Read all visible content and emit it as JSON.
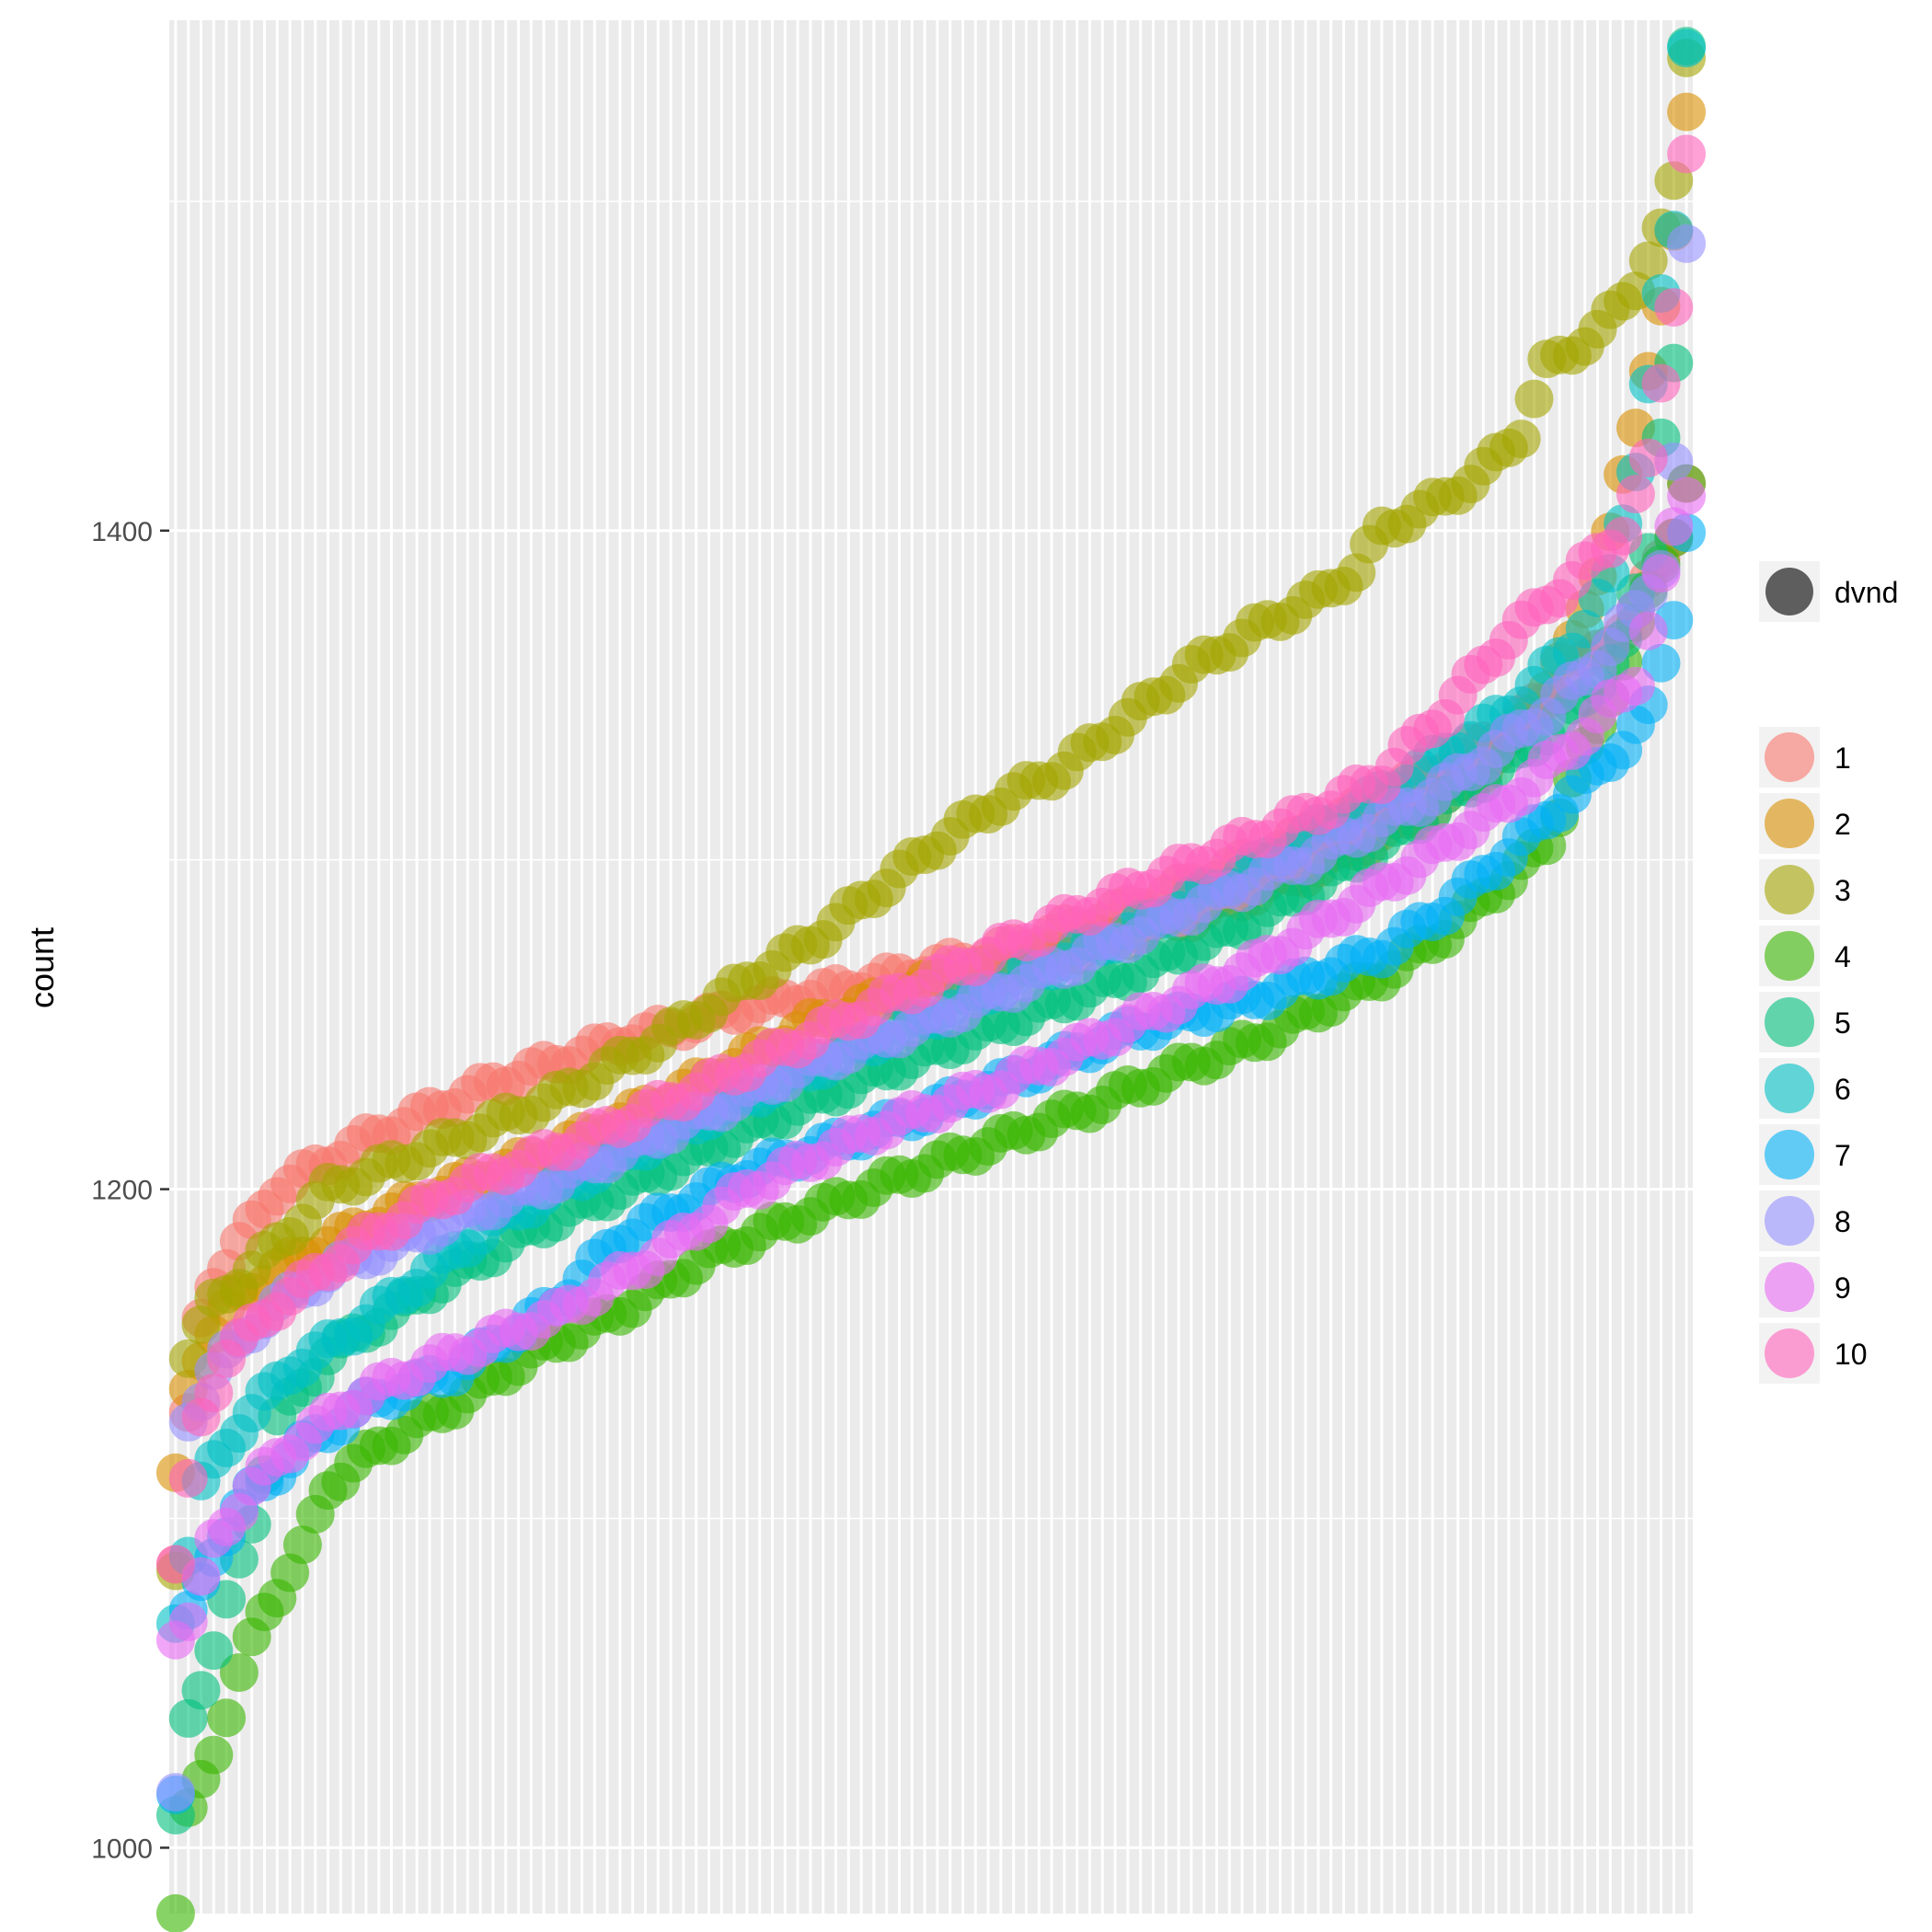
{
  "chart_data": {
    "type": "scatter",
    "title": "",
    "xlabel": "",
    "ylabel": "count",
    "x_count": 120,
    "ylim": [
      980,
      1555
    ],
    "y_ticks": [
      1000,
      1200,
      1400
    ],
    "y_minor_ticks": [
      1100,
      1300,
      1500
    ],
    "grid": true,
    "legend_position": "right",
    "size_legend": {
      "label": "dvnd"
    },
    "color_legend": {
      "entries": [
        "1",
        "2",
        "3",
        "4",
        "5",
        "6",
        "7",
        "8",
        "9",
        "10"
      ]
    },
    "series": [
      {
        "name": "1",
        "color": "#F8766D",
        "anchors": [
          [
            0,
            1086
          ],
          [
            1,
            1130
          ],
          [
            2,
            1160
          ],
          [
            3,
            1172
          ],
          [
            5,
            1183
          ],
          [
            8,
            1200
          ],
          [
            15,
            1215
          ],
          [
            25,
            1232
          ],
          [
            35,
            1245
          ],
          [
            45,
            1255
          ],
          [
            55,
            1263
          ],
          [
            65,
            1272
          ],
          [
            75,
            1285
          ],
          [
            85,
            1300
          ],
          [
            95,
            1318
          ],
          [
            105,
            1340
          ],
          [
            110,
            1355
          ],
          [
            115,
            1375
          ],
          [
            118,
            1400
          ],
          [
            119,
            1415
          ]
        ]
      },
      {
        "name": "2",
        "color": "#D89000",
        "anchors": [
          [
            0,
            1112
          ],
          [
            1,
            1140
          ],
          [
            2,
            1150
          ],
          [
            5,
            1168
          ],
          [
            10,
            1180
          ],
          [
            20,
            1198
          ],
          [
            30,
            1212
          ],
          [
            40,
            1230
          ],
          [
            50,
            1250
          ],
          [
            60,
            1263
          ],
          [
            70,
            1272
          ],
          [
            80,
            1283
          ],
          [
            90,
            1298
          ],
          [
            100,
            1318
          ],
          [
            105,
            1335
          ],
          [
            110,
            1365
          ],
          [
            113,
            1400
          ],
          [
            115,
            1430
          ],
          [
            117,
            1470
          ],
          [
            118,
            1490
          ],
          [
            119,
            1525
          ]
        ]
      },
      {
        "name": "3",
        "color": "#A3A500",
        "anchors": [
          [
            0,
            1086
          ],
          [
            1,
            1150
          ],
          [
            3,
            1165
          ],
          [
            8,
            1183
          ],
          [
            12,
            1200
          ],
          [
            20,
            1212
          ],
          [
            30,
            1228
          ],
          [
            38,
            1245
          ],
          [
            45,
            1263
          ],
          [
            50,
            1275
          ],
          [
            55,
            1290
          ],
          [
            60,
            1305
          ],
          [
            65,
            1318
          ],
          [
            70,
            1328
          ],
          [
            75,
            1343
          ],
          [
            80,
            1358
          ],
          [
            85,
            1370
          ],
          [
            90,
            1380
          ],
          [
            93,
            1388
          ],
          [
            95,
            1400
          ],
          [
            100,
            1410
          ],
          [
            103,
            1418
          ],
          [
            106,
            1430
          ],
          [
            108,
            1450
          ],
          [
            112,
            1460
          ],
          [
            115,
            1475
          ],
          [
            117,
            1490
          ],
          [
            118,
            1505
          ],
          [
            119,
            1545
          ]
        ]
      },
      {
        "name": "4",
        "color": "#39B600",
        "anchors": [
          [
            0,
            980
          ],
          [
            1,
            1010
          ],
          [
            3,
            1030
          ],
          [
            5,
            1052
          ],
          [
            7,
            1072
          ],
          [
            10,
            1090
          ],
          [
            12,
            1110
          ],
          [
            16,
            1122
          ],
          [
            22,
            1135
          ],
          [
            28,
            1150
          ],
          [
            35,
            1163
          ],
          [
            42,
            1180
          ],
          [
            50,
            1193
          ],
          [
            58,
            1205
          ],
          [
            65,
            1215
          ],
          [
            72,
            1225
          ],
          [
            78,
            1235
          ],
          [
            85,
            1245
          ],
          [
            90,
            1255
          ],
          [
            95,
            1265
          ],
          [
            100,
            1278
          ],
          [
            105,
            1295
          ],
          [
            108,
            1305
          ],
          [
            110,
            1325
          ],
          [
            112,
            1340
          ],
          [
            114,
            1362
          ],
          [
            116,
            1380
          ],
          [
            118,
            1400
          ],
          [
            119,
            1415
          ]
        ]
      },
      {
        "name": "5",
        "color": "#00BF7D",
        "anchors": [
          [
            0,
            1008
          ],
          [
            1,
            1040
          ],
          [
            3,
            1060
          ],
          [
            6,
            1100
          ],
          [
            8,
            1130
          ],
          [
            12,
            1150
          ],
          [
            20,
            1170
          ],
          [
            28,
            1188
          ],
          [
            35,
            1200
          ],
          [
            45,
            1218
          ],
          [
            55,
            1235
          ],
          [
            65,
            1250
          ],
          [
            75,
            1265
          ],
          [
            85,
            1282
          ],
          [
            95,
            1305
          ],
          [
            100,
            1318
          ],
          [
            105,
            1330
          ],
          [
            110,
            1345
          ],
          [
            114,
            1365
          ],
          [
            116,
            1395
          ],
          [
            117,
            1430
          ],
          [
            118,
            1450
          ],
          [
            119,
            1545
          ]
        ]
      },
      {
        "name": "6",
        "color": "#00BFC4",
        "anchors": [
          [
            0,
            1070
          ],
          [
            2,
            1110
          ],
          [
            5,
            1128
          ],
          [
            9,
            1145
          ],
          [
            15,
            1160
          ],
          [
            20,
            1175
          ],
          [
            25,
            1190
          ],
          [
            35,
            1210
          ],
          [
            45,
            1228
          ],
          [
            55,
            1245
          ],
          [
            65,
            1262
          ],
          [
            75,
            1278
          ],
          [
            85,
            1298
          ],
          [
            95,
            1320
          ],
          [
            105,
            1345
          ],
          [
            110,
            1365
          ],
          [
            113,
            1385
          ],
          [
            115,
            1420
          ],
          [
            117,
            1470
          ],
          [
            118,
            1490
          ],
          [
            119,
            1548
          ]
        ]
      },
      {
        "name": "7",
        "color": "#00B0F6",
        "anchors": [
          [
            0,
            1016
          ],
          [
            1,
            1070
          ],
          [
            3,
            1090
          ],
          [
            6,
            1108
          ],
          [
            10,
            1122
          ],
          [
            15,
            1135
          ],
          [
            22,
            1145
          ],
          [
            30,
            1165
          ],
          [
            35,
            1185
          ],
          [
            45,
            1205
          ],
          [
            55,
            1218
          ],
          [
            65,
            1232
          ],
          [
            75,
            1248
          ],
          [
            85,
            1258
          ],
          [
            95,
            1272
          ],
          [
            100,
            1285
          ],
          [
            105,
            1302
          ],
          [
            110,
            1320
          ],
          [
            114,
            1335
          ],
          [
            116,
            1345
          ],
          [
            118,
            1375
          ],
          [
            119,
            1400
          ]
        ]
      },
      {
        "name": "8",
        "color": "#9590FF",
        "anchors": [
          [
            0,
            1015
          ],
          [
            1,
            1130
          ],
          [
            3,
            1145
          ],
          [
            7,
            1162
          ],
          [
            12,
            1175
          ],
          [
            20,
            1188
          ],
          [
            30,
            1203
          ],
          [
            40,
            1220
          ],
          [
            50,
            1238
          ],
          [
            60,
            1252
          ],
          [
            70,
            1268
          ],
          [
            80,
            1285
          ],
          [
            90,
            1302
          ],
          [
            100,
            1322
          ],
          [
            108,
            1345
          ],
          [
            112,
            1360
          ],
          [
            115,
            1375
          ],
          [
            117,
            1390
          ],
          [
            118,
            1420
          ],
          [
            119,
            1485
          ]
        ]
      },
      {
        "name": "9",
        "color": "#E76BF3",
        "anchors": [
          [
            0,
            1065
          ],
          [
            1,
            1070
          ],
          [
            3,
            1092
          ],
          [
            6,
            1110
          ],
          [
            10,
            1125
          ],
          [
            15,
            1138
          ],
          [
            22,
            1150
          ],
          [
            30,
            1162
          ],
          [
            38,
            1180
          ],
          [
            45,
            1200
          ],
          [
            55,
            1218
          ],
          [
            65,
            1232
          ],
          [
            75,
            1250
          ],
          [
            85,
            1268
          ],
          [
            90,
            1280
          ],
          [
            95,
            1292
          ],
          [
            100,
            1305
          ],
          [
            105,
            1318
          ],
          [
            110,
            1335
          ],
          [
            115,
            1355
          ],
          [
            117,
            1385
          ],
          [
            118,
            1400
          ],
          [
            119,
            1412
          ]
        ]
      },
      {
        "name": "10",
        "color": "#FF62BC",
        "anchors": [
          [
            0,
            1086
          ],
          [
            1,
            1110
          ],
          [
            2,
            1130
          ],
          [
            4,
            1150
          ],
          [
            8,
            1165
          ],
          [
            15,
            1185
          ],
          [
            22,
            1200
          ],
          [
            32,
            1215
          ],
          [
            42,
            1232
          ],
          [
            52,
            1250
          ],
          [
            62,
            1268
          ],
          [
            72,
            1285
          ],
          [
            82,
            1302
          ],
          [
            90,
            1315
          ],
          [
            95,
            1325
          ],
          [
            100,
            1345
          ],
          [
            105,
            1368
          ],
          [
            110,
            1385
          ],
          [
            114,
            1400
          ],
          [
            116,
            1420
          ],
          [
            117,
            1445
          ],
          [
            118,
            1470
          ],
          [
            119,
            1515
          ]
        ]
      }
    ]
  }
}
